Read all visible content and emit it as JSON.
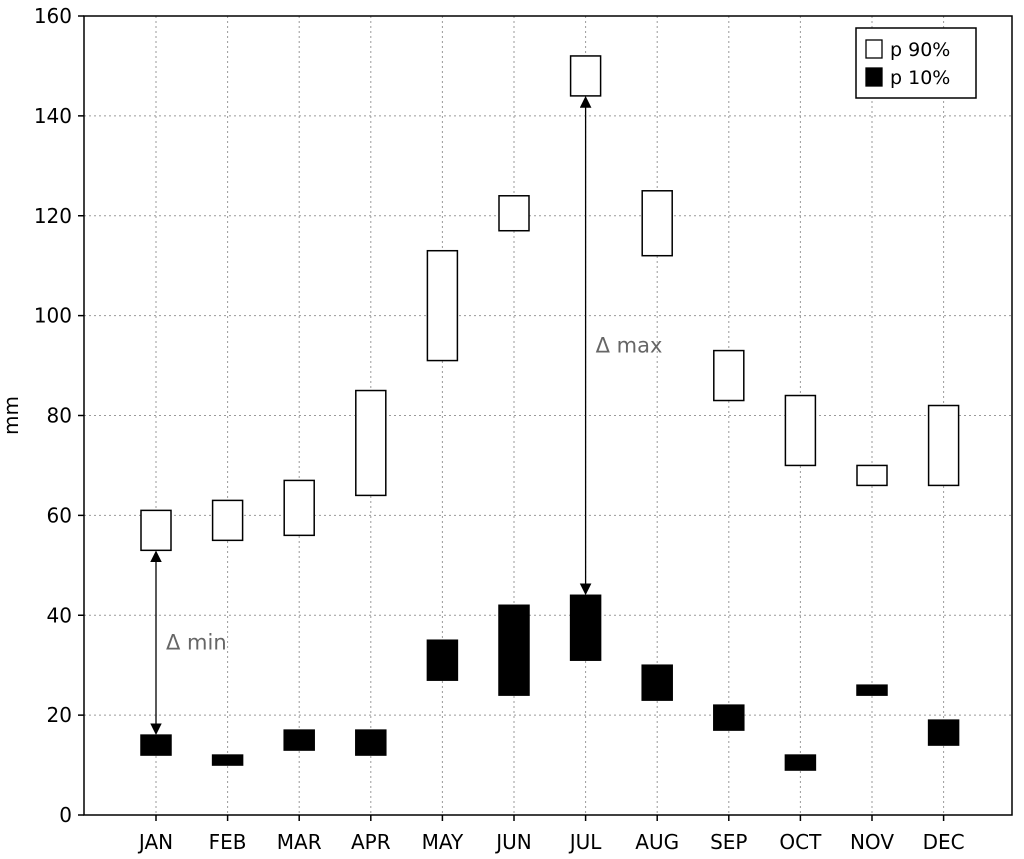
{
  "chart_data": {
    "type": "bar",
    "categories": [
      "JAN",
      "FEB",
      "MAR",
      "APR",
      "MAY",
      "JUN",
      "JUL",
      "AUG",
      "SEP",
      "OCT",
      "NOV",
      "DEC"
    ],
    "series": [
      {
        "name": "p 90%",
        "color": "#ffffff",
        "ranges": [
          [
            53,
            61
          ],
          [
            55,
            63
          ],
          [
            56,
            67
          ],
          [
            64,
            85
          ],
          [
            91,
            113
          ],
          [
            117,
            124
          ],
          [
            144,
            152
          ],
          [
            112,
            125
          ],
          [
            83,
            93
          ],
          [
            70,
            84
          ],
          [
            66,
            70
          ],
          [
            66,
            82
          ]
        ]
      },
      {
        "name": "p 10%",
        "color": "#000000",
        "ranges": [
          [
            12,
            16
          ],
          [
            10,
            12
          ],
          [
            13,
            17
          ],
          [
            12,
            17
          ],
          [
            27,
            35
          ],
          [
            24,
            42
          ],
          [
            31,
            44
          ],
          [
            23,
            30
          ],
          [
            17,
            22
          ],
          [
            9,
            12
          ],
          [
            24,
            26
          ],
          [
            14,
            19
          ]
        ]
      }
    ],
    "xlabel": "",
    "ylabel": "mm",
    "ylim": [
      0,
      160
    ],
    "yticks": [
      0,
      20,
      40,
      60,
      80,
      100,
      120,
      140,
      160
    ],
    "grid": true,
    "legend_position": "top-right",
    "annotations": [
      {
        "label": "Δ min",
        "category": "JAN",
        "y_from": 16,
        "y_to": 53
      },
      {
        "label": "Δ max",
        "category": "JUL",
        "y_from": 44,
        "y_to": 144
      }
    ]
  }
}
